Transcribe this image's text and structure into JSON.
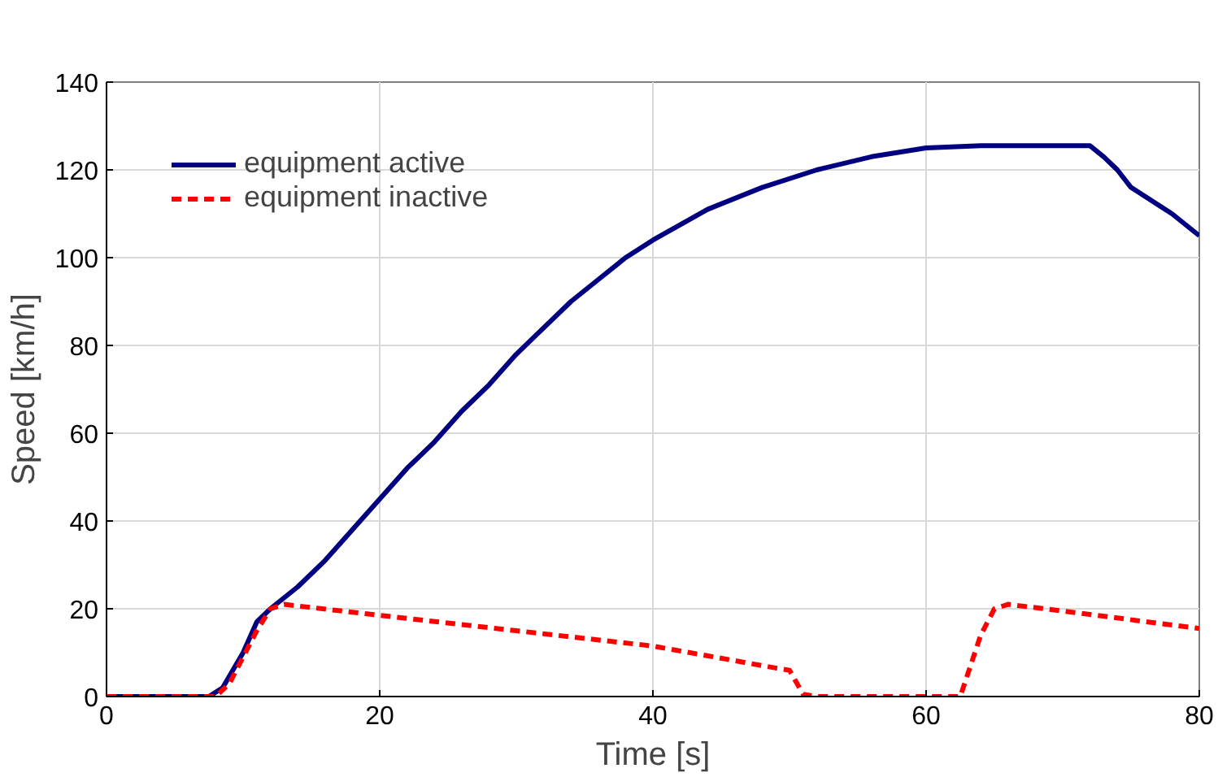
{
  "chart_data": {
    "type": "line",
    "xlabel": "Time [s]",
    "ylabel": "Speed [km/h]",
    "xlim": [
      0,
      80
    ],
    "ylim": [
      0,
      140
    ],
    "xticks": [
      0,
      20,
      40,
      60,
      80
    ],
    "yticks": [
      0,
      20,
      40,
      60,
      80,
      100,
      120,
      140
    ],
    "grid": true,
    "legend": "top left",
    "series": [
      {
        "name": "equipment active",
        "color": "#000080",
        "line_style": "solid",
        "x": [
          0,
          7.5,
          8.5,
          10,
          11,
          12,
          14,
          16,
          18,
          20,
          22,
          24,
          26,
          28,
          30,
          32,
          34,
          36,
          38,
          40,
          44,
          48,
          52,
          56,
          60,
          64,
          68,
          72,
          73,
          74,
          75,
          78,
          80
        ],
        "values": [
          0,
          0,
          2,
          10,
          17,
          20,
          25,
          31,
          38,
          45,
          52,
          58,
          65,
          71,
          78,
          84,
          90,
          95,
          100,
          104,
          111,
          116,
          120,
          123,
          125,
          125.5,
          125.5,
          125.5,
          123,
          120,
          116,
          110,
          105
        ]
      },
      {
        "name": "equipment inactive",
        "color": "#ff0000",
        "line_style": "dashed",
        "x": [
          0,
          8,
          9,
          11,
          12,
          13,
          20,
          30,
          40,
          49,
          50,
          51,
          52,
          62.5,
          64,
          65,
          66,
          70,
          80
        ],
        "values": [
          0,
          0,
          3,
          15,
          20,
          21,
          18.5,
          15,
          11.5,
          6.5,
          6,
          0.5,
          0,
          0,
          14,
          20,
          21,
          19.5,
          15.5
        ]
      }
    ]
  }
}
